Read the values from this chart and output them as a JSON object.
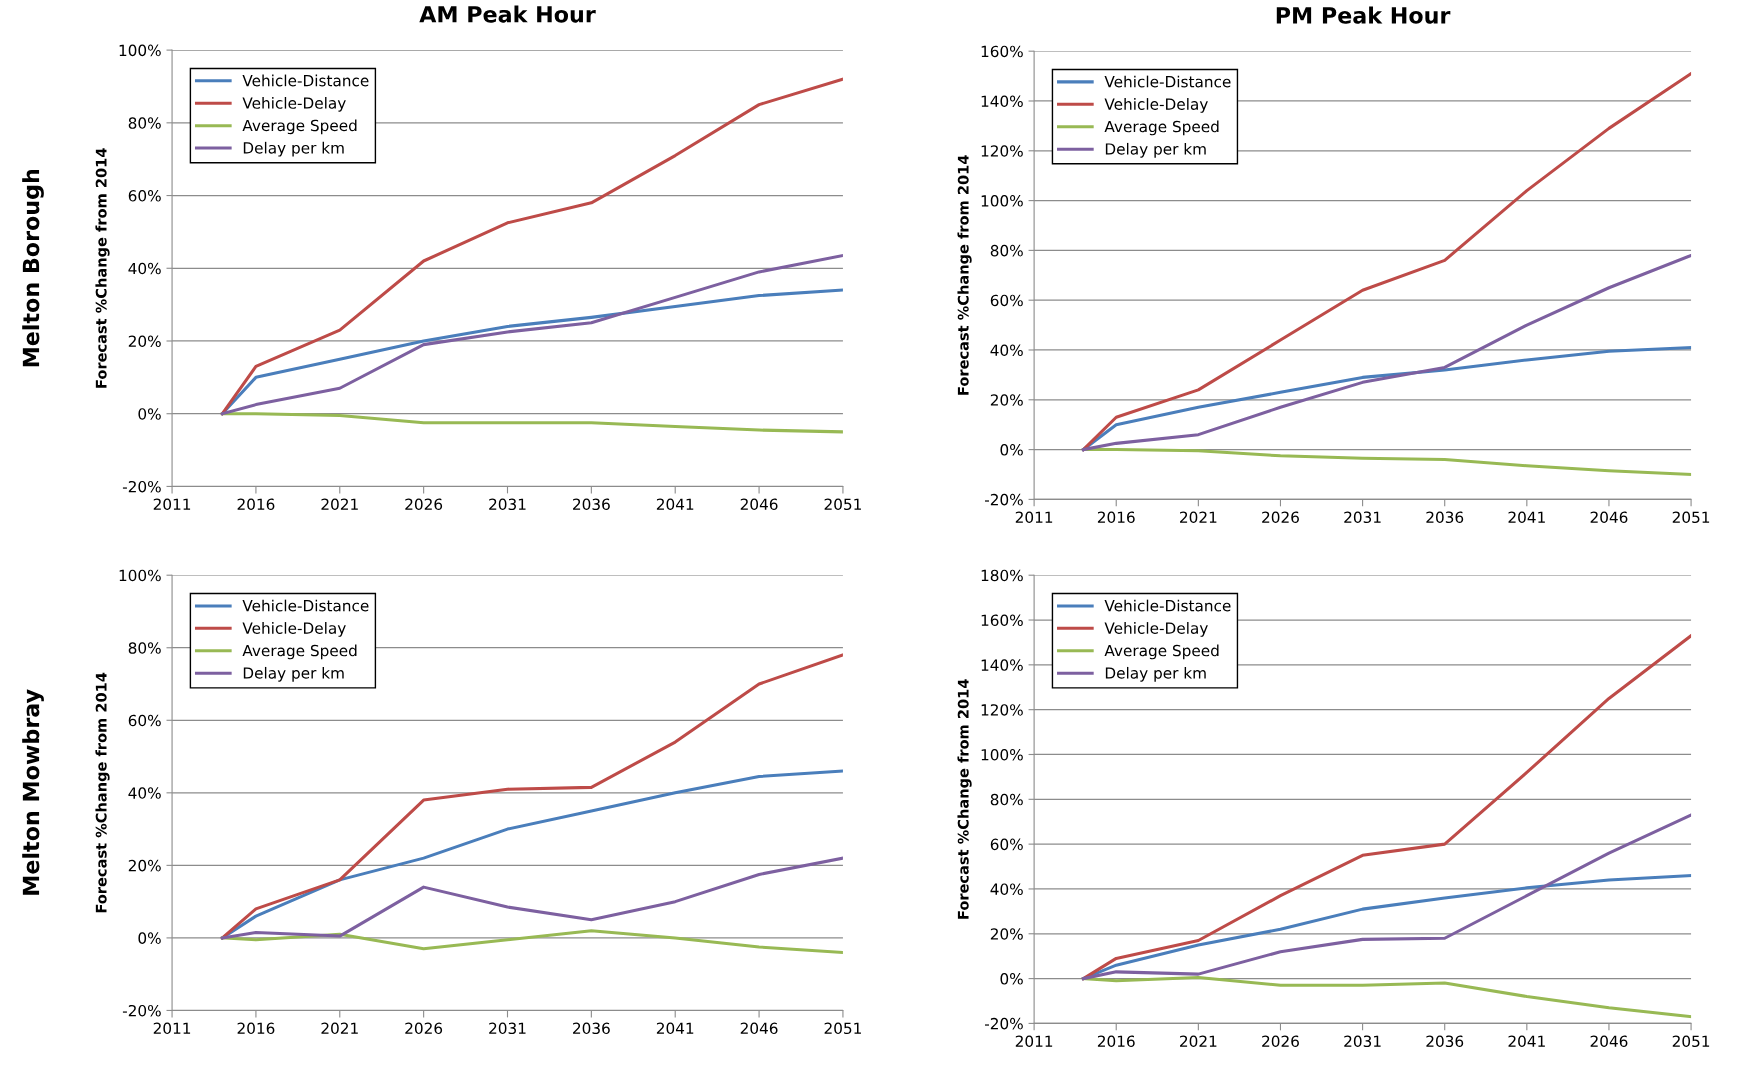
{
  "chart_data": [
    {
      "type": "line",
      "title": "AM Peak Hour",
      "ylabel": "Forecast %Change from 2014",
      "annotations": [
        "Melton Borough"
      ],
      "x": [
        2014,
        2016,
        2021,
        2026,
        2031,
        2036,
        2041,
        2046,
        2051
      ],
      "series": [
        {
          "name": "Vehicle-Distance",
          "color": "#4a7ebb",
          "values": [
            0,
            10,
            15,
            20,
            24,
            26.5,
            29.5,
            32.5,
            34
          ]
        },
        {
          "name": "Vehicle-Delay",
          "color": "#be4b48",
          "values": [
            0,
            13,
            23,
            42,
            52.5,
            58,
            71,
            85,
            92
          ]
        },
        {
          "name": "Average Speed",
          "color": "#98b954",
          "values": [
            0,
            0,
            -0.5,
            -2.5,
            -2.5,
            -2.5,
            -3.5,
            -4.5,
            -5
          ]
        },
        {
          "name": "Delay per km",
          "color": "#7d60a0",
          "values": [
            0,
            2.5,
            7,
            19,
            22.5,
            25,
            32,
            39,
            43.5
          ]
        }
      ],
      "xlim": [
        2011,
        2051
      ],
      "xticks": [
        2011,
        2016,
        2021,
        2026,
        2031,
        2036,
        2041,
        2046,
        2051
      ],
      "ylim": [
        -20,
        100
      ],
      "yticks": [
        {
          "value": -20,
          "label": "-20%"
        },
        {
          "value": 0,
          "label": "0%"
        },
        {
          "value": 20,
          "label": "20%"
        },
        {
          "value": 40,
          "label": "40%"
        },
        {
          "value": 60,
          "label": "60%"
        },
        {
          "value": 80,
          "label": "80%"
        },
        {
          "value": 100,
          "label": "100%"
        }
      ],
      "grid": "y",
      "legend": "top left",
      "marker": "none",
      "line_style": "solid"
    },
    {
      "type": "line",
      "title": "PM Peak Hour",
      "ylabel": "Forecast %Change from 2014",
      "x": [
        2014,
        2016,
        2021,
        2026,
        2031,
        2036,
        2041,
        2046,
        2051
      ],
      "series": [
        {
          "name": "Vehicle-Distance",
          "color": "#4a7ebb",
          "values": [
            0,
            10,
            17,
            23,
            29,
            32,
            36,
            39.5,
            41
          ]
        },
        {
          "name": "Vehicle-Delay",
          "color": "#be4b48",
          "values": [
            0,
            13,
            24,
            44,
            64,
            76,
            104,
            129,
            151
          ]
        },
        {
          "name": "Average Speed",
          "color": "#98b954",
          "values": [
            0,
            0,
            -0.5,
            -2.5,
            -3.5,
            -4,
            -6.5,
            -8.5,
            -10
          ]
        },
        {
          "name": "Delay per km",
          "color": "#7d60a0",
          "values": [
            0,
            2.5,
            6,
            17,
            27,
            33,
            50,
            65,
            78
          ]
        }
      ],
      "xlim": [
        2011,
        2051
      ],
      "xticks": [
        2011,
        2016,
        2021,
        2026,
        2031,
        2036,
        2041,
        2046,
        2051
      ],
      "ylim": [
        -20,
        160
      ],
      "yticks": [
        {
          "value": -20,
          "label": "-20%"
        },
        {
          "value": 0,
          "label": "0%"
        },
        {
          "value": 20,
          "label": "20%"
        },
        {
          "value": 40,
          "label": "40%"
        },
        {
          "value": 60,
          "label": "60%"
        },
        {
          "value": 80,
          "label": "80%"
        },
        {
          "value": 100,
          "label": "100%"
        },
        {
          "value": 120,
          "label": "120%"
        },
        {
          "value": 140,
          "label": "140%"
        },
        {
          "value": 160,
          "label": "160%"
        }
      ],
      "grid": "y",
      "legend": "top left",
      "marker": "none",
      "line_style": "solid"
    },
    {
      "type": "line",
      "ylabel": "Forecast %Change from 2014",
      "annotations": [
        "Melton Mowbray"
      ],
      "x": [
        2014,
        2016,
        2021,
        2026,
        2031,
        2036,
        2041,
        2046,
        2051
      ],
      "series": [
        {
          "name": "Vehicle-Distance",
          "color": "#4a7ebb",
          "values": [
            0,
            6,
            16,
            22,
            30,
            35,
            40,
            44.5,
            46
          ]
        },
        {
          "name": "Vehicle-Delay",
          "color": "#be4b48",
          "values": [
            0,
            8,
            16,
            38,
            41,
            41.5,
            54,
            70,
            78
          ]
        },
        {
          "name": "Average Speed",
          "color": "#98b954",
          "values": [
            0,
            -0.5,
            1,
            -3,
            -0.5,
            2,
            0,
            -2.5,
            -4
          ]
        },
        {
          "name": "Delay per km",
          "color": "#7d60a0",
          "values": [
            0,
            1.5,
            0.5,
            14,
            8.5,
            5,
            10,
            17.5,
            22
          ]
        }
      ],
      "xlim": [
        2011,
        2051
      ],
      "xticks": [
        2011,
        2016,
        2021,
        2026,
        2031,
        2036,
        2041,
        2046,
        2051
      ],
      "ylim": [
        -20,
        100
      ],
      "yticks": [
        {
          "value": -20,
          "label": "-20%"
        },
        {
          "value": 0,
          "label": "0%"
        },
        {
          "value": 20,
          "label": "20%"
        },
        {
          "value": 40,
          "label": "40%"
        },
        {
          "value": 60,
          "label": "60%"
        },
        {
          "value": 80,
          "label": "80%"
        },
        {
          "value": 100,
          "label": "100%"
        }
      ],
      "grid": "y",
      "legend": "top left",
      "marker": "none",
      "line_style": "solid"
    },
    {
      "type": "line",
      "ylabel": "Forecast %Change from 2014",
      "x": [
        2014,
        2016,
        2021,
        2026,
        2031,
        2036,
        2041,
        2046,
        2051
      ],
      "series": [
        {
          "name": "Vehicle-Distance",
          "color": "#4a7ebb",
          "values": [
            0,
            6,
            15,
            22,
            31,
            36,
            40.5,
            44,
            46
          ]
        },
        {
          "name": "Vehicle-Delay",
          "color": "#be4b48",
          "values": [
            0,
            9,
            17,
            37,
            55,
            60,
            92,
            125,
            153
          ]
        },
        {
          "name": "Average Speed",
          "color": "#98b954",
          "values": [
            0,
            -1,
            0.5,
            -3,
            -3,
            -2,
            -8,
            -13,
            -17
          ]
        },
        {
          "name": "Delay per km",
          "color": "#7d60a0",
          "values": [
            0,
            3,
            2,
            12,
            17.5,
            18,
            37,
            56,
            73
          ]
        }
      ],
      "xlim": [
        2011,
        2051
      ],
      "xticks": [
        2011,
        2016,
        2021,
        2026,
        2031,
        2036,
        2041,
        2046,
        2051
      ],
      "ylim": [
        -20,
        180
      ],
      "yticks": [
        {
          "value": -20,
          "label": "-20%"
        },
        {
          "value": 0,
          "label": "0%"
        },
        {
          "value": 20,
          "label": "20%"
        },
        {
          "value": 40,
          "label": "40%"
        },
        {
          "value": 60,
          "label": "60%"
        },
        {
          "value": 80,
          "label": "80%"
        },
        {
          "value": 100,
          "label": "100%"
        },
        {
          "value": 120,
          "label": "120%"
        },
        {
          "value": 140,
          "label": "140%"
        },
        {
          "value": 160,
          "label": "160%"
        },
        {
          "value": 180,
          "label": "180%"
        }
      ],
      "grid": "y",
      "legend": "top left",
      "marker": "none",
      "line_style": "solid"
    }
  ]
}
